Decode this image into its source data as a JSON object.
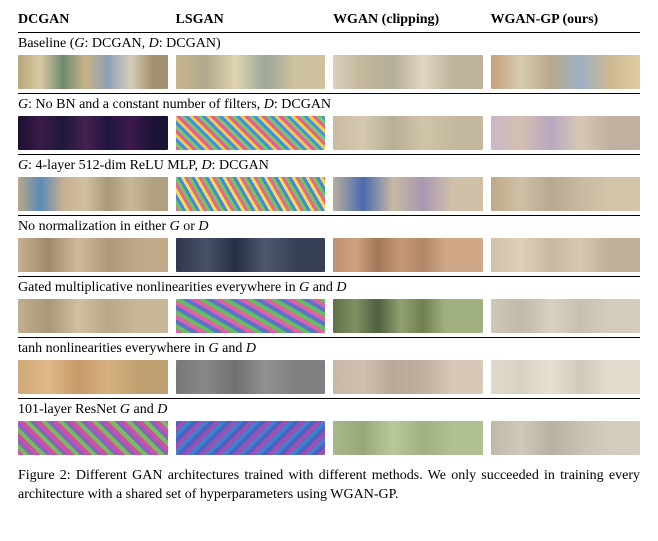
{
  "headers": [
    "DCGAN",
    "LSGAN",
    "WGAN (clipping)",
    "WGAN-GP (ours)"
  ],
  "rows": [
    {
      "label_html": "Baseline (<span class='math'>G</span>: DCGAN, <span class='math'>D</span>: DCGAN)",
      "strips": [
        "linear-gradient(90deg,#b6a87a,#d9c9a3 15%,#6d8a6f 30%,#c8b38a 45%,#8fa0b5 60%,#d6cdb8 75%,#a39070 90%)",
        "linear-gradient(90deg,#c9b58b,#b0a98d 20%,#e0d4b0 40%,#9aa89a 60%,#cfc2a0 80%)",
        "linear-gradient(90deg,#d9d0c0,#c4b79a 20%,#b5ae9a 40%,#e2d7c2 60%,#bdb29a 80%)",
        "linear-gradient(90deg,#c7a07a,#d6cab0 20%,#b8a88a 40%,#9db0c4 60%,#cdb892 80%,#e0cca0)"
      ]
    },
    {
      "label_html": "<span class='math'>G</span>: No BN and a constant number of filters, <span class='math'>D</span>: DCGAN",
      "strips": [
        "linear-gradient(90deg,#1a1030,#3a1a4a 15%,#1d1838 30%,#46204f 45%,#201540 60%,#3d1a4c 75%,#1b1236 90%)",
        "repeating-linear-gradient(45deg,#e85a9a 0 3px,#6ad06a 3px 6px,#4a8ae8 6px 9px,#f0d040 9px 12px)",
        "linear-gradient(90deg,#c8bba0,#d4c8b0 20%,#b8ae96 40%,#d0c4a8 60%,#c4b89e 80%)",
        "linear-gradient(90deg,#c8b8c8,#d4c0b0 20%,#b8a8c0 40%,#d6c8b4 60%,#c0b0a0 80%)"
      ]
    },
    {
      "label_html": "<span class='math'>G</span>: 4-layer 512-dim ReLU MLP, <span class='math'>D</span>: DCGAN",
      "strips": [
        "linear-gradient(90deg,#b8a88a,#5a8ab8 15%,#c8b090 30%,#d0c0a0 45%,#a89878 60%,#c8b898 75%,#b0a080 90%)",
        "repeating-linear-gradient(60deg,#f06090 0 3px,#60d060 3px 6px,#5080e0 6px 9px,#f0e050 9px 12px)",
        "linear-gradient(90deg,#b8b0a0,#4a6ab0 20%,#c8b8a0 40%,#a898b0 60%,#d0c0a8 80%)",
        "linear-gradient(90deg,#c0a888,#d0c0a8 20%,#b8a890 40%,#c8b8a0 60%,#d4c4aa 80%)"
      ]
    },
    {
      "label_html": "No normalization in either <span class='math'>G</span> or <span class='math'>D</span>",
      "strips": [
        "linear-gradient(90deg,#c8b090,#a08868 20%,#d0b898 40%,#b09878 60%,#c0a888 80%)",
        "linear-gradient(90deg,#303850,#485068 20%,#283048 40%,#505870 60%,#384058 80%)",
        "linear-gradient(90deg,#c09070,#d0a080 15%,#a07858 30%,#c89878 45%,#b08868 60%,#d0a888 75%)",
        "linear-gradient(90deg,#d0c0a8,#e0d0b8 20%,#c8b8a0 40%,#d8c8b0 60%,#c0b098 80%)"
      ]
    },
    {
      "label_html": "Gated multiplicative nonlinearities everywhere in <span class='math'>G</span> and <span class='math'>D</span>",
      "strips": [
        "linear-gradient(90deg,#c0b090,#a89878 20%,#d0c0a0 40%,#b8a888 60%,#c8b898 80%)",
        "repeating-linear-gradient(30deg,#e060a0 0 4px,#60c060 4px 8px,#6070d0 8px 12px)",
        "linear-gradient(90deg,#607048,#809060 15%,#506040 30%,#90a070 45%,#708050 60%,#a0b080 75%)",
        "linear-gradient(90deg,#d0c8b8,#c0b8a8 20%,#d8d0c0 40%,#c8c0b0 60%,#d4ccbc 80%)"
      ]
    },
    {
      "label_html": "tanh nonlinearities everywhere in <span class='math'>G</span> and <span class='math'>D</span>",
      "strips": [
        "linear-gradient(90deg,#d0a878,#e0b888 20%,#c89868 40%,#d8b080 60%,#c0a070 80%)",
        "linear-gradient(90deg,#787878,#888888 20%,#707070 40%,#909090 60%,#808080 80%)",
        "linear-gradient(90deg,#c8b8a8,#d0c0b0 20%,#b8a898 40%,#c0b0a0 60%,#d8c8b8 80%)",
        "linear-gradient(90deg,#e0d8c8,#d8d0c0 20%,#e8e0d0 40%,#d0c8b8 60%,#e4dccc 80%)"
      ]
    },
    {
      "label_html": "101-layer ResNet <span class='math'>G</span> and <span class='math'>D</span>",
      "strips": [
        "repeating-linear-gradient(45deg,#d050a0 0 4px,#70c060 4px 8px,#9060c0 8px 12px)",
        "repeating-linear-gradient(135deg,#5060c0 0 4px,#a050b0 4px 8px,#4080d0 8px 12px)",
        "linear-gradient(90deg,#a8b888,#98a878 20%,#b8c898 40%,#a0b080 60%,#b0c090 80%)",
        "linear-gradient(90deg,#c0b8a8,#d0c8b8 20%,#b8b0a0 40%,#c8c0b0 60%,#d4ccbc 80%)"
      ]
    }
  ],
  "caption": "Figure 2: Different GAN architectures trained with different methods. We only succeeded in training every architecture with a shared set of hyperparameters using WGAN-GP."
}
